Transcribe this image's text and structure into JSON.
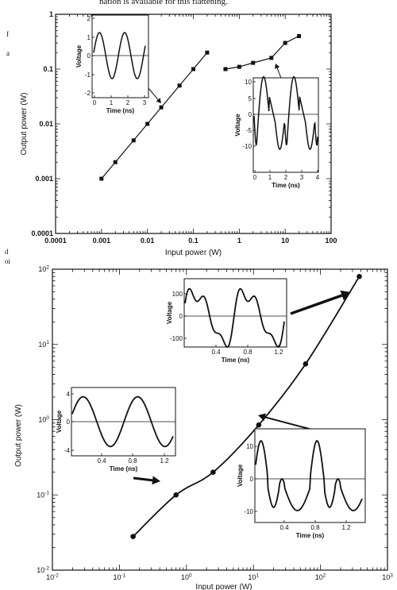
{
  "page": {
    "top_text": "nation is available for this flattening.",
    "margin_marks": [
      "f",
      "a",
      "d",
      "oi"
    ]
  },
  "chart_data": [
    {
      "type": "line",
      "xlabel": "Input power (W)",
      "ylabel": "Output power (W)",
      "log_x": true,
      "log_y": true,
      "xlim": [
        0.0001,
        100
      ],
      "ylim": [
        0.0001,
        1
      ],
      "x_tick_labels": [
        "0.0001",
        "0.001",
        "0.01",
        "0.1",
        "1",
        "10",
        "100"
      ],
      "y_tick_labels": [
        "0.0001",
        "0.001",
        "0.01",
        "0.1",
        "1"
      ],
      "series": [
        {
          "x": [
            0.001,
            0.002,
            0.005,
            0.01,
            0.02,
            0.05,
            0.1,
            0.2
          ],
          "y": [
            0.001,
            0.002,
            0.005,
            0.01,
            0.02,
            0.05,
            0.1,
            0.2
          ]
        },
        {
          "x": [
            0.5,
            1,
            2,
            5,
            10,
            20
          ],
          "y": [
            0.1,
            0.11,
            0.13,
            0.16,
            0.3,
            0.4
          ]
        }
      ],
      "insets": [
        {
          "xlabel": "Time (ns)",
          "ylabel": "Voltage",
          "x_ticks": [
            "0",
            "1",
            "2",
            "3"
          ],
          "y_ticks": [
            "2",
            "1",
            "0",
            "-1",
            "-2"
          ]
        },
        {
          "xlabel": "Time (ns)",
          "ylabel": "Voltage",
          "x_ticks": [
            "0",
            "1",
            "2",
            "3",
            "4"
          ],
          "y_ticks": [
            "10",
            "5",
            "0",
            "-5",
            "-10"
          ]
        }
      ]
    },
    {
      "type": "line",
      "xlabel": "Input power (W)",
      "ylabel": "Output power (W)",
      "log_x": true,
      "log_y": true,
      "xlim": [
        0.01,
        1000
      ],
      "ylim": [
        0.01,
        100
      ],
      "x_tick_labels": [
        {
          "base": "10",
          "exp": "-2"
        },
        {
          "base": "10",
          "exp": "-1"
        },
        {
          "base": "10",
          "exp": "0"
        },
        {
          "base": "10",
          "exp": "1"
        },
        {
          "base": "10",
          "exp": "2"
        },
        {
          "base": "10",
          "exp": "3"
        }
      ],
      "y_tick_labels": [
        {
          "base": "10",
          "exp": "2"
        },
        {
          "base": "10",
          "exp": "1"
        },
        {
          "base": "10",
          "exp": "0"
        },
        {
          "base": "10",
          "exp": "-1"
        },
        {
          "base": "10",
          "exp": "-2"
        }
      ],
      "series": [
        {
          "x": [
            0.16,
            0.7,
            2.5,
            12,
            60,
            380
          ],
          "y": [
            0.028,
            0.1,
            0.2,
            0.85,
            5.5,
            80
          ]
        }
      ],
      "insets": [
        {
          "xlabel": "Time (ns)",
          "ylabel": "Voltage",
          "x_ticks": [
            "0.4",
            "0.8",
            "1.2"
          ],
          "y_ticks": [
            "100",
            "0",
            "-100"
          ]
        },
        {
          "xlabel": "Time (ns)",
          "ylabel": "Voltage",
          "x_ticks": [
            "0.4",
            "0.8",
            "1.2"
          ],
          "y_ticks": [
            "4",
            "0",
            "-4"
          ]
        },
        {
          "xlabel": "Time (ns)",
          "ylabel": "Voltage",
          "x_ticks": [
            "0.4",
            "0.8",
            "1.2"
          ],
          "y_ticks": [
            "10",
            "0",
            "-10"
          ]
        }
      ]
    }
  ]
}
